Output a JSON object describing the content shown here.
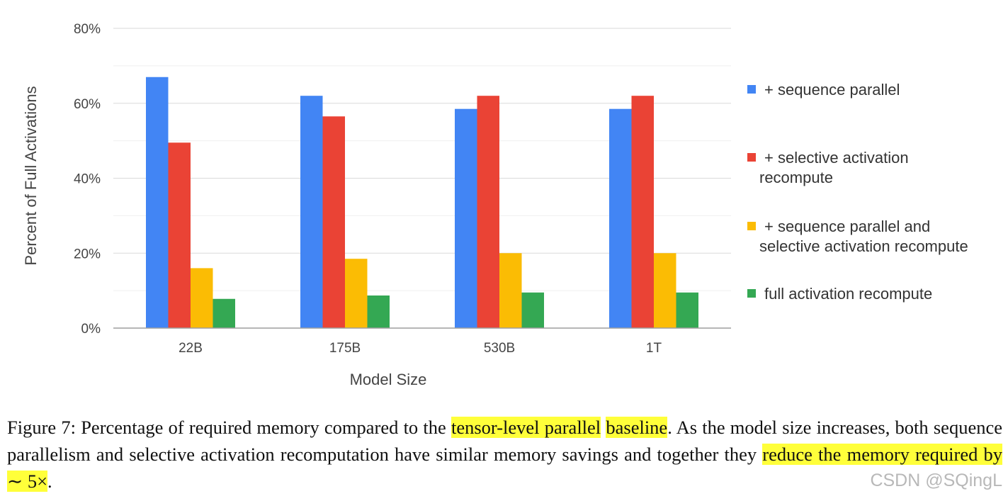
{
  "chart_data": {
    "type": "bar",
    "categories": [
      "22B",
      "175B",
      "530B",
      "1T"
    ],
    "series": [
      {
        "name": "+ sequence parallel",
        "color": "#4285f4",
        "values": [
          67,
          62,
          58.5,
          58.5
        ]
      },
      {
        "name": "+ selective activation recompute",
        "color": "#ea4335",
        "values": [
          49.5,
          56.5,
          62,
          62
        ]
      },
      {
        "name": "+ sequence parallel and selective activation recompute",
        "color": "#fbbc04",
        "values": [
          16,
          18.5,
          20,
          20
        ]
      },
      {
        "name": "full activation recompute",
        "color": "#34a853",
        "values": [
          7.8,
          8.7,
          9.5,
          9.5
        ]
      }
    ],
    "legend_lines": [
      [
        "+ sequence parallel"
      ],
      [
        "+ selective activation",
        "recompute"
      ],
      [
        "+ sequence parallel and",
        "selective activation recompute"
      ],
      [
        "full activation recompute"
      ]
    ],
    "xlabel": "Model Size",
    "ylabel": "Percent of Full Activations",
    "ylim": [
      0,
      80
    ],
    "yticks": [
      0,
      20,
      40,
      60,
      80
    ],
    "ytick_labels": [
      "0%",
      "20%",
      "40%",
      "60%",
      "80%"
    ],
    "legend_position": "right",
    "grid": true
  },
  "caption": {
    "label": "Figure 7:",
    "part1": " Percentage of required memory compared to the ",
    "hl1": "tensor-level parallel",
    "part2": " ",
    "hl2": "baseline",
    "part3": ". As the model size increases, both sequence parallelism and selective activation recomputation have similar memory savings and together they ",
    "hl3": "reduce the memory required by ∼ 5×",
    "part4": "."
  },
  "watermark": "CSDN @SQingL"
}
